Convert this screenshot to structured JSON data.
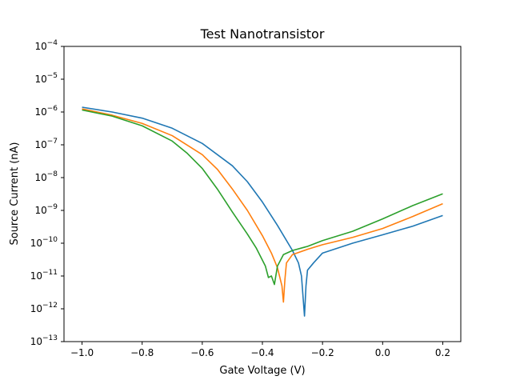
{
  "chart_data": {
    "type": "line",
    "title": "Test Nanotransistor",
    "xlabel": "Gate Voltage (V)",
    "ylabel": "Source Current (nA)",
    "xlim": [
      -1.06,
      0.26
    ],
    "ylim_log10": [
      -13,
      -4
    ],
    "yscale": "log",
    "grid": false,
    "x_ticks": [
      -1.0,
      -0.8,
      -0.6,
      -0.4,
      -0.2,
      0.0,
      0.2
    ],
    "x_tick_labels": [
      "−1.0",
      "−0.8",
      "−0.6",
      "−0.4",
      "−0.2",
      "0.0",
      "0.2"
    ],
    "y_ticks_log10": [
      -13,
      -12,
      -11,
      -10,
      -9,
      -8,
      -7,
      -6,
      -5,
      -4
    ],
    "y_tick_labels": [
      "10^-13",
      "10^-12",
      "10^-11",
      "10^-10",
      "10^-9",
      "10^-8",
      "10^-7",
      "10^-6",
      "10^-5",
      "10^-4"
    ],
    "series": [
      {
        "color": "#1f77b4",
        "points": [
          [
            -1.0,
            1.4e-06
          ],
          [
            -0.9,
            1e-06
          ],
          [
            -0.8,
            6.5e-07
          ],
          [
            -0.7,
            3.2e-07
          ],
          [
            -0.6,
            1.1e-07
          ],
          [
            -0.5,
            2.3e-08
          ],
          [
            -0.45,
            7.5e-09
          ],
          [
            -0.4,
            1.8e-09
          ],
          [
            -0.35,
            3.5e-10
          ],
          [
            -0.3,
            6e-11
          ],
          [
            -0.28,
            2.5e-11
          ],
          [
            -0.27,
            1e-11
          ],
          [
            -0.26,
            6e-13
          ],
          [
            -0.255,
            5e-12
          ],
          [
            -0.25,
            1.5e-11
          ],
          [
            -0.23,
            2.5e-11
          ],
          [
            -0.2,
            5e-11
          ],
          [
            -0.1,
            1e-10
          ],
          [
            0.0,
            1.8e-10
          ],
          [
            0.1,
            3.3e-10
          ],
          [
            0.2,
            7e-10
          ]
        ]
      },
      {
        "color": "#ff7f0e",
        "points": [
          [
            -1.0,
            1.25e-06
          ],
          [
            -0.9,
            8e-07
          ],
          [
            -0.8,
            4.5e-07
          ],
          [
            -0.7,
            1.9e-07
          ],
          [
            -0.6,
            5e-08
          ],
          [
            -0.55,
            1.8e-08
          ],
          [
            -0.5,
            4.5e-09
          ],
          [
            -0.45,
            1e-09
          ],
          [
            -0.4,
            1.7e-10
          ],
          [
            -0.37,
            5e-11
          ],
          [
            -0.35,
            1.8e-11
          ],
          [
            -0.335,
            5e-12
          ],
          [
            -0.33,
            1.6e-12
          ],
          [
            -0.325,
            8e-12
          ],
          [
            -0.32,
            2.5e-11
          ],
          [
            -0.3,
            4.5e-11
          ],
          [
            -0.25,
            6.5e-11
          ],
          [
            -0.2,
            9e-11
          ],
          [
            -0.1,
            1.5e-10
          ],
          [
            0.0,
            2.8e-10
          ],
          [
            0.1,
            6.5e-10
          ],
          [
            0.2,
            1.6e-09
          ]
        ]
      },
      {
        "color": "#2ca02c",
        "points": [
          [
            -1.0,
            1.15e-06
          ],
          [
            -0.9,
            7.5e-07
          ],
          [
            -0.8,
            3.8e-07
          ],
          [
            -0.7,
            1.3e-07
          ],
          [
            -0.65,
            5.5e-08
          ],
          [
            -0.6,
            1.9e-08
          ],
          [
            -0.55,
            4.5e-09
          ],
          [
            -0.5,
            9e-10
          ],
          [
            -0.45,
            1.9e-10
          ],
          [
            -0.42,
            7e-11
          ],
          [
            -0.39,
            2e-11
          ],
          [
            -0.38,
            9e-12
          ],
          [
            -0.37,
            1e-11
          ],
          [
            -0.36,
            5.5e-12
          ],
          [
            -0.35,
            2e-11
          ],
          [
            -0.33,
            4.5e-11
          ],
          [
            -0.3,
            6e-11
          ],
          [
            -0.25,
            8e-11
          ],
          [
            -0.2,
            1.2e-10
          ],
          [
            -0.1,
            2.3e-10
          ],
          [
            0.0,
            5.5e-10
          ],
          [
            0.1,
            1.4e-09
          ],
          [
            0.2,
            3.2e-09
          ]
        ]
      }
    ]
  }
}
